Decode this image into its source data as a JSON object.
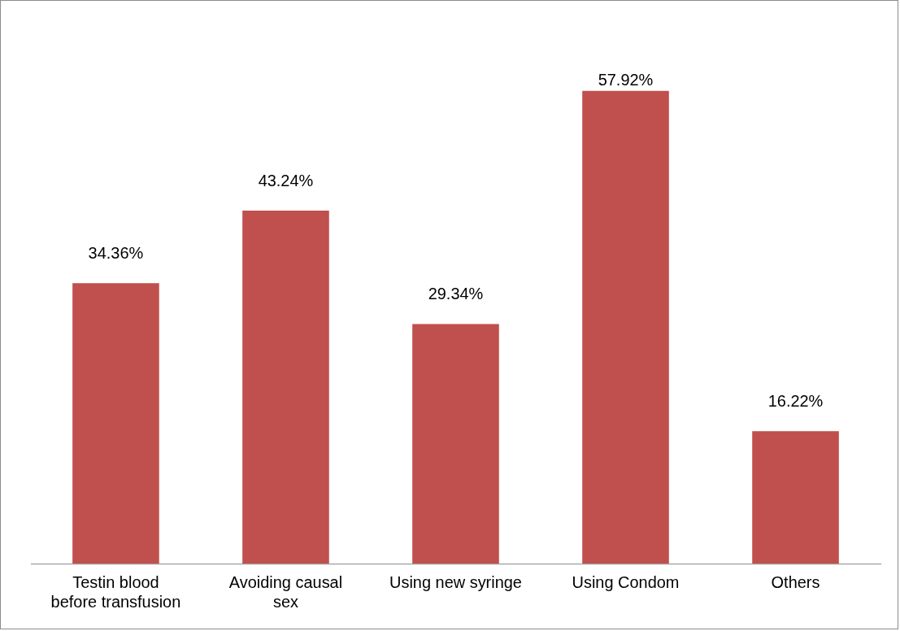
{
  "chart_data": {
    "type": "bar",
    "categories": [
      "Testin blood before transfusion",
      "Avoiding causal sex",
      "Using new syringe",
      "Using Condom",
      "Others"
    ],
    "values": [
      34.36,
      43.24,
      29.34,
      57.92,
      16.22
    ],
    "value_labels": [
      "34.36%",
      "43.24%",
      "29.34%",
      "57.92%",
      "16.22%"
    ],
    "color": "#c0504d",
    "grid": false,
    "legend": false
  }
}
